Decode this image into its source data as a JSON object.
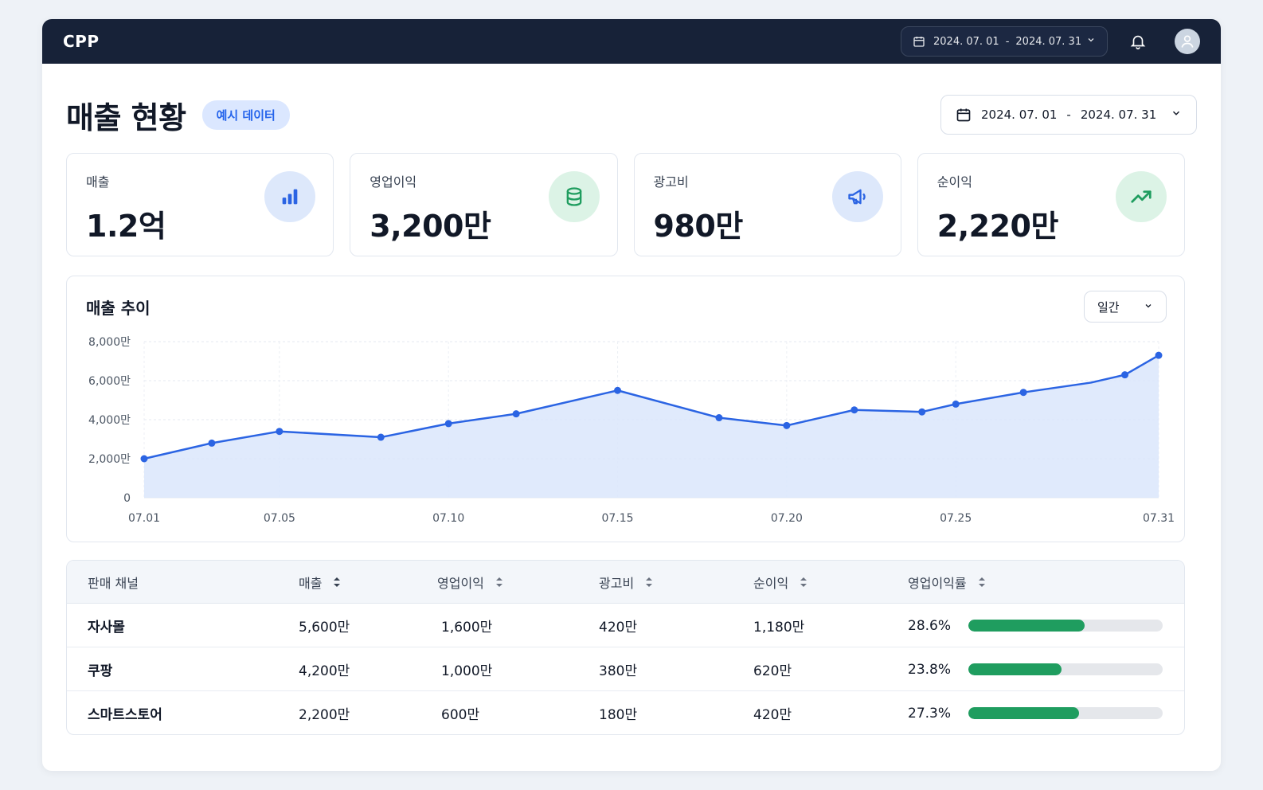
{
  "topbar": {
    "brand": "CPP",
    "date_start": "2024. 07. 01",
    "date_sep": "-",
    "date_end": "2024. 07. 31"
  },
  "header": {
    "title": "매출 현황",
    "badge": "예시 데이터",
    "date_start": "2024. 07. 01",
    "date_sep": "-",
    "date_end": "2024. 07. 31"
  },
  "kpis": [
    {
      "label": "매출",
      "value": "1.2억",
      "icon": "bar-chart-icon",
      "bg": "#dde8fb",
      "color": "#2b64e3"
    },
    {
      "label": "영업이익",
      "value": "3,200만",
      "icon": "database-icon",
      "bg": "#dcf3e6",
      "color": "#1f9d5f"
    },
    {
      "label": "광고비",
      "value": "980만",
      "icon": "megaphone-icon",
      "bg": "#dde8fb",
      "color": "#2b64e3"
    },
    {
      "label": "순이익",
      "value": "2,220만",
      "icon": "trending-up-icon",
      "bg": "#dcf3e6",
      "color": "#1f9d5f"
    }
  ],
  "chart": {
    "title": "매출 추이",
    "period_label": "일간"
  },
  "chart_data": {
    "type": "area",
    "title": "매출 추이",
    "x": [
      1,
      3,
      5,
      8,
      10,
      12,
      15,
      18,
      20,
      22,
      24,
      25,
      27,
      29,
      30,
      31
    ],
    "series": [
      {
        "values": [
          2000,
          2800,
          3400,
          3100,
          3800,
          4300,
          5500,
          4100,
          3700,
          4500,
          4400,
          4800,
          5400,
          5900,
          6300,
          7300
        ]
      }
    ],
    "x_ticks": [
      {
        "x": 1,
        "label": "07.01"
      },
      {
        "x": 5,
        "label": "07.05"
      },
      {
        "x": 10,
        "label": "07.10"
      },
      {
        "x": 15,
        "label": "07.15"
      },
      {
        "x": 20,
        "label": "07.20"
      },
      {
        "x": 25,
        "label": "07.25"
      },
      {
        "x": 31,
        "label": "07.31"
      }
    ],
    "y_ticks": [
      {
        "y": 0,
        "label": "0"
      },
      {
        "y": 2000,
        "label": "2,000만"
      },
      {
        "y": 4000,
        "label": "4,000만"
      },
      {
        "y": 6000,
        "label": "6,000만"
      },
      {
        "y": 8000,
        "label": "8,000만"
      }
    ],
    "xlim": [
      1,
      31
    ],
    "ylim": [
      0,
      8000
    ],
    "line_color": "#2b64e3",
    "fill_color": "#dbe6fb",
    "grid": true,
    "markers_on_all_points_except": [
      29
    ]
  },
  "table": {
    "headers": [
      "판매 채널",
      "매출",
      "영업이익",
      "광고비",
      "순이익",
      "영업이익률"
    ],
    "rows": [
      {
        "channel": "자사몰",
        "sales": "5,600만",
        "op_profit": "1,600만",
        "ad_cost": "420만",
        "net_profit": "1,180만",
        "margin": "28.6%",
        "margin_bar": 0.6
      },
      {
        "channel": "쿠팡",
        "sales": "4,200만",
        "op_profit": "1,000만",
        "ad_cost": "380만",
        "net_profit": "620만",
        "margin": "23.8%",
        "margin_bar": 0.48
      },
      {
        "channel": "스마트스토어",
        "sales": "2,200만",
        "op_profit": "600만",
        "ad_cost": "180만",
        "net_profit": "420만",
        "margin": "27.3%",
        "margin_bar": 0.57
      }
    ],
    "bar_color": "#1f9d5f"
  }
}
